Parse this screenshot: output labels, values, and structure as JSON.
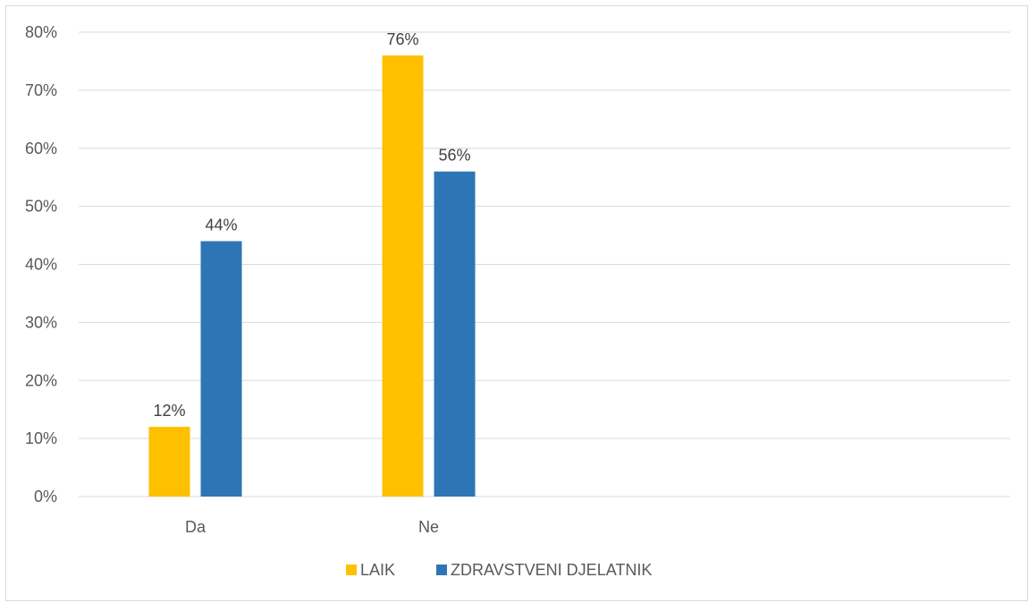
{
  "chart_data": {
    "type": "bar",
    "categories": [
      "Da",
      "Ne"
    ],
    "series": [
      {
        "name": "LAIK",
        "values": [
          12,
          76
        ],
        "labels": [
          "12%",
          "76%"
        ],
        "color": "#FFC000"
      },
      {
        "name": "ZDRAVSTVENI DJELATNIK",
        "values": [
          44,
          56
        ],
        "labels": [
          "44%",
          "56%"
        ],
        "color": "#2E75B6"
      }
    ],
    "ylim": [
      0,
      80
    ],
    "y_ticks": [
      0,
      10,
      20,
      30,
      40,
      50,
      60,
      70,
      80
    ],
    "y_tick_labels": [
      "0%",
      "10%",
      "20%",
      "30%",
      "40%",
      "50%",
      "60%",
      "70%",
      "80%"
    ],
    "title": "",
    "xlabel": "",
    "ylabel": "",
    "grid": true,
    "legend": "bottom",
    "gridline_color": "#d9d9d9"
  }
}
